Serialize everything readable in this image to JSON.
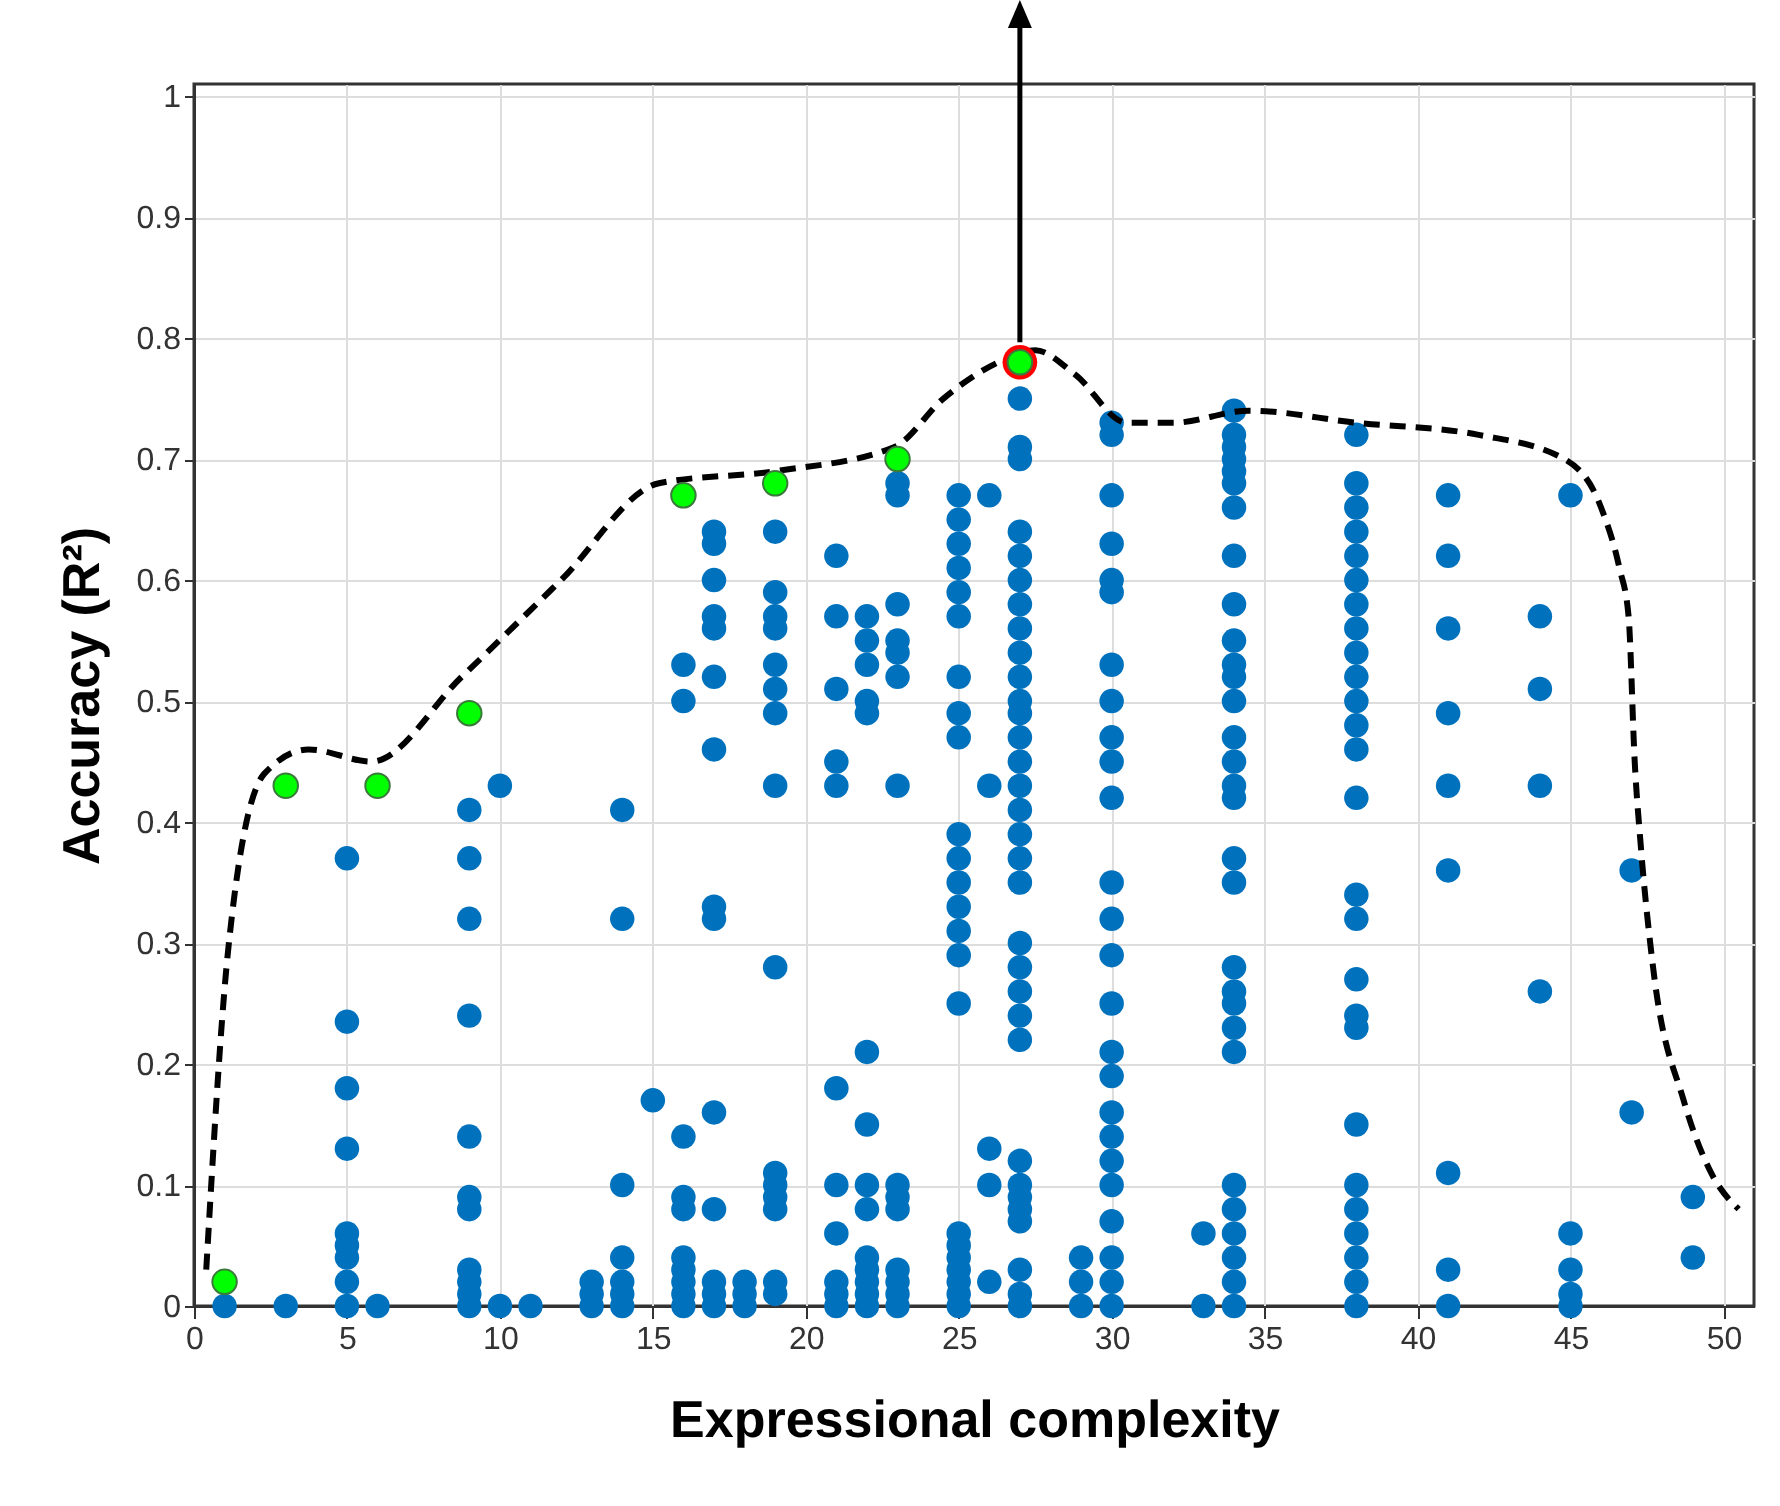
{
  "chart_data": {
    "type": "scatter",
    "xlabel": "Expressional complexity",
    "ylabel": "Accuracy (R²)",
    "xlim": [
      0,
      51
    ],
    "ylim": [
      0,
      1.01
    ],
    "xticks": [
      0,
      5,
      10,
      15,
      20,
      25,
      30,
      35,
      40,
      45,
      50
    ],
    "yticks": [
      0,
      0.1,
      0.2,
      0.3,
      0.4,
      0.5,
      0.6,
      0.7,
      0.8,
      0.9,
      1
    ],
    "grid": true,
    "series": [
      {
        "color": "#0072bd",
        "x": [
          1,
          3,
          5,
          5,
          5,
          5,
          5,
          5,
          5,
          5,
          5,
          6,
          9,
          9,
          9,
          9,
          9,
          9,
          9,
          9,
          9,
          9,
          9,
          10,
          10,
          11,
          13,
          13,
          13,
          14,
          14,
          14,
          14,
          14,
          14,
          14,
          15,
          16,
          16,
          16,
          16,
          16,
          16,
          16,
          16,
          16,
          16,
          17,
          17,
          17,
          17,
          17,
          17,
          17,
          17,
          17,
          17,
          17,
          17,
          17,
          17,
          18,
          18,
          18,
          19,
          19,
          19,
          19,
          19,
          19,
          19,
          19,
          19,
          19,
          19,
          19,
          19,
          19,
          19,
          21,
          21,
          21,
          21,
          21,
          21,
          21,
          21,
          21,
          21,
          21,
          22,
          22,
          22,
          22,
          22,
          22,
          22,
          22,
          22,
          22,
          22,
          22,
          22,
          22,
          23,
          23,
          23,
          23,
          23,
          23,
          23,
          23,
          23,
          23,
          23,
          23,
          23,
          23,
          25,
          25,
          25,
          25,
          25,
          25,
          25,
          25,
          25,
          25,
          25,
          25,
          25,
          25,
          25,
          25,
          25,
          25,
          25,
          25,
          25,
          25,
          25,
          26,
          26,
          26,
          26,
          26,
          27,
          27,
          27,
          27,
          27,
          27,
          27,
          27,
          27,
          27,
          27,
          27,
          27,
          27,
          27,
          27,
          27,
          27,
          27,
          27,
          27,
          27,
          27,
          27,
          27,
          27,
          27,
          27,
          27,
          27,
          27,
          27,
          29,
          29,
          29,
          30,
          30,
          30,
          30,
          30,
          30,
          30,
          30,
          30,
          30,
          30,
          30,
          30,
          30,
          30,
          30,
          30,
          30,
          30,
          30,
          30,
          30,
          30,
          30,
          30,
          33,
          33,
          34,
          34,
          34,
          34,
          34,
          34,
          34,
          34,
          34,
          34,
          34,
          34,
          34,
          34,
          34,
          34,
          34,
          34,
          34,
          34,
          34,
          34,
          34,
          34,
          34,
          34,
          34,
          34,
          34,
          34,
          38,
          38,
          38,
          38,
          38,
          38,
          38,
          38,
          38,
          38,
          38,
          38,
          38,
          38,
          38,
          38,
          38,
          38,
          38,
          38,
          38,
          38,
          38,
          38,
          38,
          38,
          41,
          41,
          41,
          41,
          41,
          41,
          41,
          41,
          41,
          44,
          44,
          44,
          44,
          45,
          45,
          45,
          45,
          45,
          47,
          47,
          49,
          49
        ],
        "values": [
          0,
          0,
          0.37,
          0.235,
          0.18,
          0.13,
          0.06,
          0.05,
          0.04,
          0.02,
          0,
          0,
          0.41,
          0.37,
          0.32,
          0.24,
          0.14,
          0.09,
          0.08,
          0.03,
          0.02,
          0.01,
          0,
          0.43,
          0,
          0,
          0.02,
          0.01,
          0,
          0.41,
          0.32,
          0.1,
          0.04,
          0.02,
          0.01,
          0,
          0.17,
          0.53,
          0.5,
          0.14,
          0.09,
          0.08,
          0.04,
          0.03,
          0.02,
          0.01,
          0,
          0.64,
          0.63,
          0.6,
          0.57,
          0.56,
          0.52,
          0.46,
          0.33,
          0.32,
          0.16,
          0.08,
          0.02,
          0.01,
          0,
          0.02,
          0.01,
          0,
          0.64,
          0.59,
          0.57,
          0.56,
          0.53,
          0.51,
          0.49,
          0.43,
          0.28,
          0.11,
          0.1,
          0.09,
          0.08,
          0.02,
          0.01,
          0.62,
          0.57,
          0.51,
          0.45,
          0.43,
          0.18,
          0.1,
          0.06,
          0.02,
          0.01,
          0,
          0.57,
          0.55,
          0.53,
          0.5,
          0.49,
          0.21,
          0.15,
          0.1,
          0.08,
          0.04,
          0.03,
          0.02,
          0.01,
          0,
          0.68,
          0.67,
          0.58,
          0.55,
          0.54,
          0.52,
          0.43,
          0.1,
          0.09,
          0.08,
          0.03,
          0.02,
          0.01,
          0,
          0.67,
          0.65,
          0.63,
          0.61,
          0.59,
          0.57,
          0.52,
          0.49,
          0.47,
          0.39,
          0.37,
          0.35,
          0.33,
          0.31,
          0.29,
          0.25,
          0.06,
          0.05,
          0.04,
          0.03,
          0.02,
          0.01,
          0,
          0.67,
          0.43,
          0.13,
          0.1,
          0.02,
          0.75,
          0.71,
          0.7,
          0.64,
          0.62,
          0.6,
          0.58,
          0.56,
          0.54,
          0.52,
          0.5,
          0.49,
          0.47,
          0.45,
          0.43,
          0.41,
          0.39,
          0.37,
          0.35,
          0.3,
          0.28,
          0.26,
          0.24,
          0.22,
          0.12,
          0.1,
          0.09,
          0.08,
          0.07,
          0.03,
          0.01,
          0,
          0.04,
          0.02,
          0,
          0.73,
          0.72,
          0.67,
          0.63,
          0.6,
          0.59,
          0.53,
          0.5,
          0.47,
          0.45,
          0.42,
          0.35,
          0.32,
          0.29,
          0.25,
          0.21,
          0.19,
          0.16,
          0.14,
          0.12,
          0.1,
          0.07,
          0.04,
          0.02,
          0,
          0.06,
          0,
          0.74,
          0.72,
          0.71,
          0.7,
          0.69,
          0.68,
          0.66,
          0.62,
          0.58,
          0.55,
          0.53,
          0.52,
          0.5,
          0.47,
          0.45,
          0.43,
          0.42,
          0.37,
          0.35,
          0.28,
          0.26,
          0.25,
          0.23,
          0.21,
          0.1,
          0.08,
          0.06,
          0.04,
          0.02,
          0,
          0.72,
          0.68,
          0.66,
          0.64,
          0.62,
          0.6,
          0.58,
          0.56,
          0.54,
          0.52,
          0.5,
          0.48,
          0.46,
          0.42,
          0.34,
          0.32,
          0.27,
          0.24,
          0.23,
          0.15,
          0.1,
          0.08,
          0.06,
          0.04,
          0.02,
          0,
          0.67,
          0.62,
          0.56,
          0.49,
          0.43,
          0.36,
          0.11,
          0.03,
          0,
          0.57,
          0.51,
          0.43,
          0.26,
          0.67,
          0.06,
          0.03,
          0.01,
          0,
          0.36,
          0.16,
          0.09,
          0.04
        ]
      },
      {
        "type": "line",
        "color": "#000000",
        "line_style": "dashed",
        "marker": "none",
        "x": [
          0.4,
          1.1,
          2.3,
          3.75,
          5.8,
          8.75,
          12,
          15.2,
          19,
          22.9,
          24.5,
          26.3,
          27.5,
          28.8,
          30.5,
          32,
          34.5,
          38,
          42,
          44.8,
          46,
          46.6,
          46.9,
          47.1,
          47.3,
          47.7,
          48.7,
          49.6,
          50.5
        ],
        "values": [
          0.03,
          0.29,
          0.44,
          0.46,
          0.45,
          0.52,
          0.6,
          0.68,
          0.69,
          0.71,
          0.75,
          0.78,
          0.79,
          0.77,
          0.73,
          0.73,
          0.74,
          0.73,
          0.72,
          0.7,
          0.66,
          0.61,
          0.57,
          0.45,
          0.38,
          0.28,
          0.17,
          0.11,
          0.08
        ]
      },
      {
        "color": "#ff0000",
        "x": [
          27
        ],
        "values": [
          0.78
        ]
      },
      {
        "color": "#00ff00",
        "x": [
          1,
          3,
          6,
          9,
          16,
          19,
          23,
          27
        ],
        "values": [
          0.02,
          0.43,
          0.43,
          0.49,
          0.67,
          0.68,
          0.7,
          0.78
        ]
      }
    ]
  }
}
